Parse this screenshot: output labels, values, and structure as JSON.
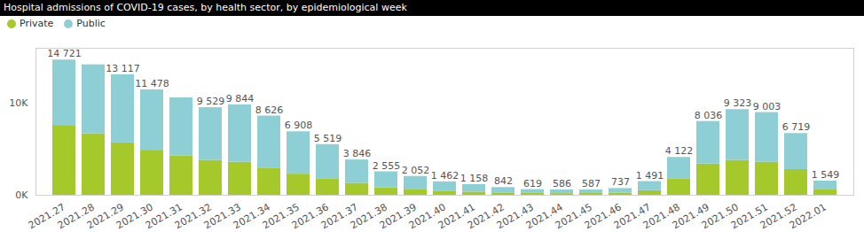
{
  "chart_data": {
    "type": "bar",
    "stacked": true,
    "title": "Hospital admissions of COVID-19 cases, by health sector, by epidemiological week",
    "categories": [
      "2021.27",
      "2021.28",
      "2021.29",
      "2021.30",
      "2021.31",
      "2021.32",
      "2021.33",
      "2021.34",
      "2021.35",
      "2021.36",
      "2021.37",
      "2021.38",
      "2021.39",
      "2021.40",
      "2021.41",
      "2021.42",
      "2021.43",
      "2021.44",
      "2021.45",
      "2021.46",
      "2021.47",
      "2021.48",
      "2021.49",
      "2021.50",
      "2021.51",
      "2021.52",
      "2022.01"
    ],
    "series": [
      {
        "name": "Private",
        "color": "#a5c92b",
        "values": [
          7600,
          6700,
          5700,
          4900,
          4300,
          3800,
          3600,
          2900,
          2300,
          1800,
          1300,
          800,
          650,
          450,
          350,
          260,
          200,
          180,
          190,
          230,
          500,
          1800,
          3400,
          3800,
          3600,
          2800,
          650
        ]
      },
      {
        "name": "Public",
        "color": "#8ecfd6",
        "values": [
          7121,
          7500,
          7417,
          6578,
          6300,
          5729,
          6244,
          5726,
          4608,
          3719,
          2546,
          1755,
          1402,
          1012,
          808,
          582,
          419,
          406,
          397,
          507,
          991,
          2322,
          4636,
          5523,
          5403,
          3919,
          899
        ]
      }
    ],
    "total_labels": [
      "14 721",
      null,
      "13 117",
      "11 478",
      null,
      "9 529",
      "9 844",
      "8 626",
      "6 908",
      "5 519",
      "3 846",
      "2 555",
      "2 052",
      "1 462",
      "1 158",
      "842",
      "619",
      "586",
      "587",
      "737",
      "1 491",
      "4 122",
      "8 036",
      "9 323",
      "9 003",
      "6 719",
      "1 549"
    ],
    "ylim": [
      0,
      16000
    ],
    "yticks": [
      {
        "value": 0,
        "label": "0K"
      },
      {
        "value": 10000,
        "label": "10K"
      }
    ],
    "grid": false,
    "legend": "top-left"
  }
}
